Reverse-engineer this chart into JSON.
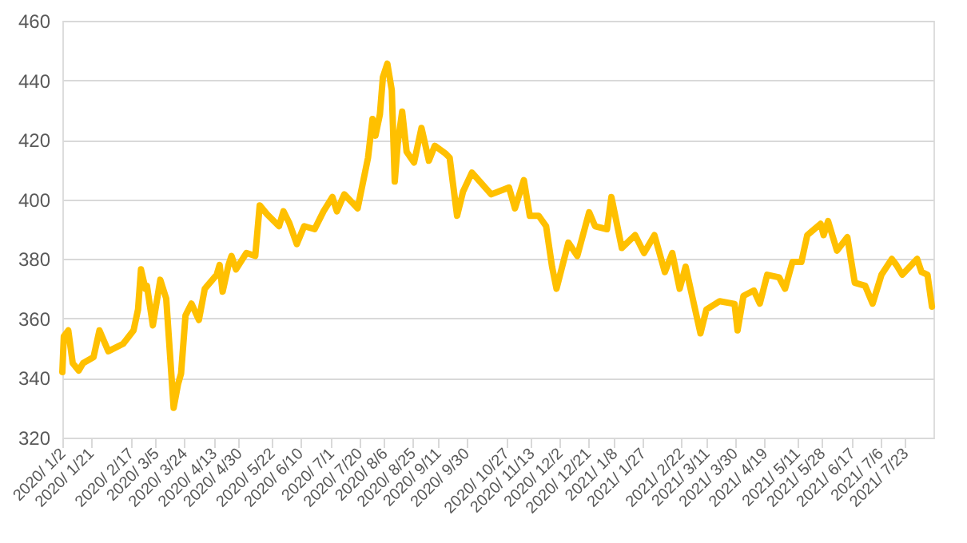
{
  "chart_data": {
    "type": "line",
    "grid": "y",
    "marker": "none",
    "line_style": "solid",
    "x": [
      "2020-01-02",
      "2020-01-03",
      "2020-01-06",
      "2020-01-09",
      "2020-01-13",
      "2020-01-16",
      "2020-01-23",
      "2020-01-27",
      "2020-02-02",
      "2020-02-12",
      "2020-02-19",
      "2020-02-22",
      "2020-02-24",
      "2020-02-27",
      "2020-02-28",
      "2020-03-03",
      "2020-03-08",
      "2020-03-12",
      "2020-03-14",
      "2020-03-17",
      "2020-03-20",
      "2020-03-22",
      "2020-03-25",
      "2020-03-29",
      "2020-04-03",
      "2020-04-07",
      "2020-04-15",
      "2020-04-17",
      "2020-04-19",
      "2020-04-23",
      "2020-04-25",
      "2020-04-28",
      "2020-05-05",
      "2020-05-11",
      "2020-05-14",
      "2020-05-19",
      "2020-05-27",
      "2020-05-30",
      "2020-06-03",
      "2020-06-08",
      "2020-06-13",
      "2020-06-20",
      "2020-06-26",
      "2020-07-02",
      "2020-07-05",
      "2020-07-10",
      "2020-07-19",
      "2020-07-26",
      "2020-07-29",
      "2020-07-31",
      "2020-08-03",
      "2020-08-05",
      "2020-08-08",
      "2020-08-11",
      "2020-08-13",
      "2020-08-15",
      "2020-08-18",
      "2020-08-21",
      "2020-08-26",
      "2020-08-31",
      "2020-09-05",
      "2020-09-09",
      "2020-09-16",
      "2020-09-19",
      "2020-09-24",
      "2020-09-28",
      "2020-10-04",
      "2020-10-17",
      "2020-10-29",
      "2020-11-02",
      "2020-11-08",
      "2020-11-12",
      "2020-11-18",
      "2020-11-23",
      "2020-11-27",
      "2020-11-30",
      "2020-12-08",
      "2020-12-14",
      "2020-12-22",
      "2020-12-26",
      "2021-01-03",
      "2021-01-06",
      "2021-01-13",
      "2021-01-22",
      "2021-01-28",
      "2021-02-04",
      "2021-02-11",
      "2021-02-16",
      "2021-02-21",
      "2021-02-25",
      "2021-03-07",
      "2021-03-11",
      "2021-03-20",
      "2021-03-30",
      "2021-04-01",
      "2021-04-05",
      "2021-04-12",
      "2021-04-16",
      "2021-04-21",
      "2021-04-29",
      "2021-05-03",
      "2021-05-08",
      "2021-05-14",
      "2021-05-18",
      "2021-05-27",
      "2021-05-29",
      "2021-06-01",
      "2021-06-07",
      "2021-06-14",
      "2021-06-19",
      "2021-06-26",
      "2021-07-01",
      "2021-07-07",
      "2021-07-14",
      "2021-07-17",
      "2021-07-21",
      "2021-07-31",
      "2021-08-03",
      "2021-08-07",
      "2021-08-10"
    ],
    "series": [
      {
        "color": "#ffc000",
        "values": [
          342,
          354,
          356,
          345,
          342.5,
          345,
          347,
          356,
          349,
          351.5,
          356,
          363,
          376.5,
          370,
          371,
          357.7,
          373,
          366.7,
          352,
          330,
          338,
          341.5,
          361,
          365,
          359.5,
          370,
          374.7,
          378,
          369,
          378,
          381,
          376.5,
          382,
          381,
          398,
          395,
          391,
          396,
          392,
          385,
          391,
          390,
          396,
          400.8,
          396,
          401.7,
          397,
          414,
          427,
          421.4,
          428.6,
          441,
          445.6,
          436.7,
          406,
          418.7,
          429.5,
          416,
          412.4,
          424,
          413,
          418,
          415.5,
          414,
          394.5,
          402.6,
          409,
          401.7,
          404,
          397,
          406.5,
          394.5,
          394.5,
          391,
          377.4,
          370,
          385.5,
          381,
          395.7,
          391,
          390,
          400.8,
          383.7,
          388,
          382,
          388,
          375.6,
          382,
          370,
          377.4,
          355,
          363,
          365.8,
          364.9,
          356,
          367.6,
          369.4,
          365,
          374.7,
          373.8,
          370,
          379,
          379,
          388,
          391.8,
          388,
          392.7,
          382.8,
          387.3,
          372,
          371,
          365,
          374.7,
          380,
          378,
          374.7,
          380,
          375.6,
          374.7,
          364
        ]
      }
    ],
    "xlim": [
      "2020-01-02",
      "2021-08-11"
    ],
    "xticks": [
      {
        "value": "2020-01-02",
        "label": "2020/ 1/2"
      },
      {
        "value": "2020-01-21",
        "label": "2020/ 1/21"
      },
      {
        "value": "2020-02-17",
        "label": "2020/ 2/17"
      },
      {
        "value": "2020-03-05",
        "label": "2020/ 3/5"
      },
      {
        "value": "2020-03-24",
        "label": "2020/ 3/24"
      },
      {
        "value": "2020-04-13",
        "label": "2020/ 4/13"
      },
      {
        "value": "2020-04-30",
        "label": "2020/ 4/30"
      },
      {
        "value": "2020-05-22",
        "label": "2020/ 5/22"
      },
      {
        "value": "2020-06-10",
        "label": "2020/ 6/10"
      },
      {
        "value": "2020-07-01",
        "label": "2020/ 7/1"
      },
      {
        "value": "2020-07-20",
        "label": "2020/ 7/20"
      },
      {
        "value": "2020-08-06",
        "label": "2020/ 8/6"
      },
      {
        "value": "2020-08-25",
        "label": "2020/ 8/25"
      },
      {
        "value": "2020-09-11",
        "label": "2020/ 9/11"
      },
      {
        "value": "2020-09-30",
        "label": "2020/ 9/30"
      },
      {
        "value": "2020-10-27",
        "label": "2020/ 10/27"
      },
      {
        "value": "2020-11-13",
        "label": "2020/ 11/13"
      },
      {
        "value": "2020-12-02",
        "label": "2020/ 12/2"
      },
      {
        "value": "2020-12-21",
        "label": "2020/ 12/21"
      },
      {
        "value": "2021-01-08",
        "label": "2021/ 1/8"
      },
      {
        "value": "2021-01-27",
        "label": "2021/ 1/27"
      },
      {
        "value": "2021-02-22",
        "label": "2021/ 2/22"
      },
      {
        "value": "2021-03-11",
        "label": "2021/ 3/11"
      },
      {
        "value": "2021-03-30",
        "label": "2021/ 3/30"
      },
      {
        "value": "2021-04-19",
        "label": "2021/ 4/19"
      },
      {
        "value": "2021-05-11",
        "label": "2021/ 5/11"
      },
      {
        "value": "2021-05-28",
        "label": "2021/ 5/28"
      },
      {
        "value": "2021-06-17",
        "label": "2021/ 6/17"
      },
      {
        "value": "2021-07-06",
        "label": "2021/ 7/6"
      },
      {
        "value": "2021-07-23",
        "label": "2021/ 7/23"
      }
    ],
    "ylim": [
      320,
      460
    ],
    "yticks": [
      320,
      340,
      360,
      380,
      400,
      420,
      440,
      460
    ]
  }
}
